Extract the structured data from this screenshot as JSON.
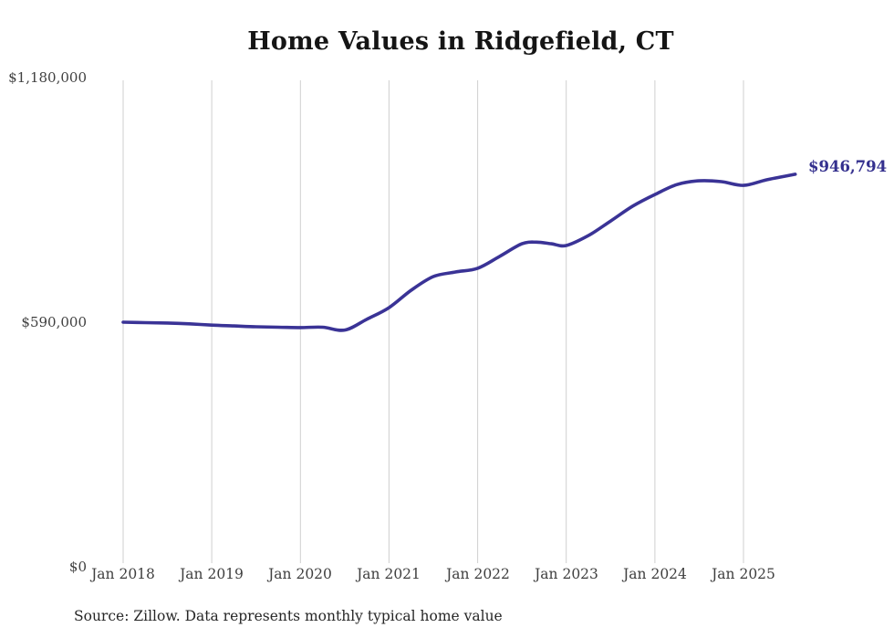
{
  "title": "Home Values in Ridgefield, CT",
  "source_note": "Source: Zillow. Data represents monthly typical home value",
  "colors": {
    "line": "#3a3396",
    "grid": "#cfcfcf",
    "axis_text": "#3f3f3f",
    "title_text": "#151515",
    "end_label_text": "#34308e",
    "source_text": "#262626"
  },
  "chart_data": {
    "type": "line",
    "title": "Home Values in Ridgefield, CT",
    "xlabel": "",
    "ylabel": "",
    "ylim": [
      0,
      1180000
    ],
    "y_ticks": [
      0,
      590000,
      1180000
    ],
    "y_tick_labels": [
      "$0",
      "$590,000",
      "$1,180,000"
    ],
    "x_tick_labels": [
      "Jan 2018",
      "Jan 2019",
      "Jan 2020",
      "Jan 2021",
      "Jan 2022",
      "Jan 2023",
      "Jan 2024",
      "Jan 2025"
    ],
    "grid": "vertical-only",
    "legend": "none",
    "final_value": 946794,
    "final_value_label": "$946,794",
    "series": [
      {
        "name": "Monthly typical home value",
        "points": [
          {
            "date": "2018-01",
            "value": 590000
          },
          {
            "date": "2018-04",
            "value": 589000
          },
          {
            "date": "2018-07",
            "value": 588000
          },
          {
            "date": "2018-10",
            "value": 586000
          },
          {
            "date": "2019-01",
            "value": 583000
          },
          {
            "date": "2019-04",
            "value": 581000
          },
          {
            "date": "2019-07",
            "value": 579000
          },
          {
            "date": "2019-10",
            "value": 578000
          },
          {
            "date": "2020-01",
            "value": 577000
          },
          {
            "date": "2020-04",
            "value": 578000
          },
          {
            "date": "2020-07",
            "value": 571000
          },
          {
            "date": "2020-10",
            "value": 597000
          },
          {
            "date": "2021-01",
            "value": 625000
          },
          {
            "date": "2021-04",
            "value": 667000
          },
          {
            "date": "2021-07",
            "value": 700000
          },
          {
            "date": "2021-10",
            "value": 711000
          },
          {
            "date": "2022-01",
            "value": 720000
          },
          {
            "date": "2022-04",
            "value": 749000
          },
          {
            "date": "2022-07",
            "value": 779000
          },
          {
            "date": "2022-09",
            "value": 783000
          },
          {
            "date": "2022-11",
            "value": 779000
          },
          {
            "date": "2023-01",
            "value": 775000
          },
          {
            "date": "2023-04",
            "value": 799000
          },
          {
            "date": "2023-07",
            "value": 834000
          },
          {
            "date": "2023-10",
            "value": 870000
          },
          {
            "date": "2024-01",
            "value": 898000
          },
          {
            "date": "2024-04",
            "value": 922000
          },
          {
            "date": "2024-07",
            "value": 931000
          },
          {
            "date": "2024-10",
            "value": 929000
          },
          {
            "date": "2025-01",
            "value": 920000
          },
          {
            "date": "2025-04",
            "value": 933000
          },
          {
            "date": "2025-06",
            "value": 940000
          },
          {
            "date": "2025-08",
            "value": 946794
          }
        ]
      }
    ]
  }
}
